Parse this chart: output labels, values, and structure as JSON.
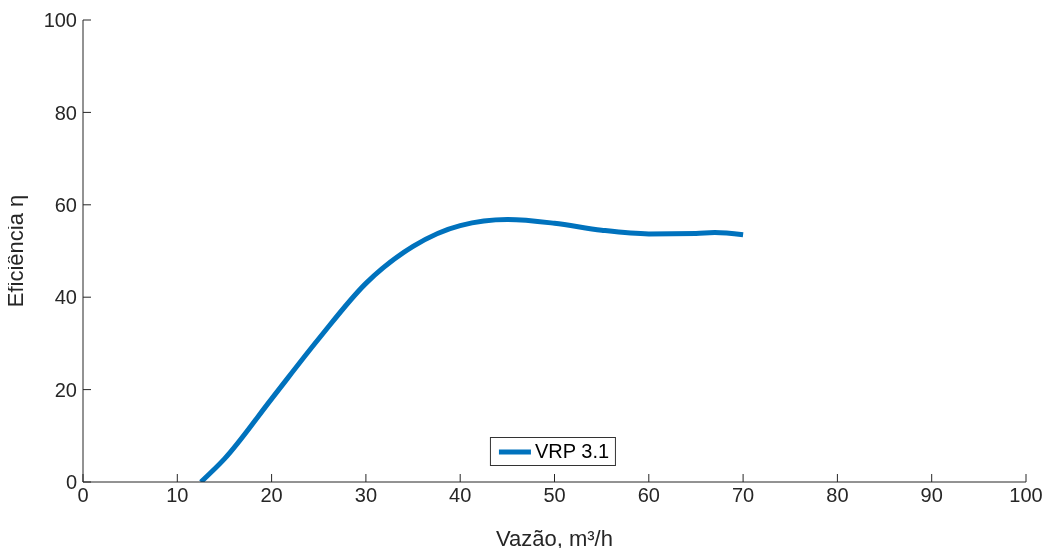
{
  "chart_data": {
    "type": "line",
    "xlabel": "Vazão, m³/h",
    "ylabel": "Eficiência η",
    "x": [
      12.5,
      15,
      20,
      25,
      30,
      35,
      40,
      45,
      50,
      55,
      60,
      65,
      67,
      70
    ],
    "series": [
      {
        "name": "VRP 3.1",
        "color": "#0072bd",
        "values": [
          0,
          5,
          18,
          31,
          43,
          51,
          55.5,
          56.8,
          56,
          54.5,
          53.7,
          53.8,
          54,
          53.5
        ]
      }
    ],
    "xlim": [
      0,
      100
    ],
    "xticks": [
      0,
      10,
      20,
      30,
      40,
      50,
      60,
      70,
      80,
      90,
      100
    ],
    "ylim": [
      0,
      100
    ],
    "yticks": [
      0,
      20,
      40,
      60,
      80,
      100
    ],
    "legend": "bottom",
    "grid": false,
    "marker": "none",
    "line_style": "solid"
  }
}
